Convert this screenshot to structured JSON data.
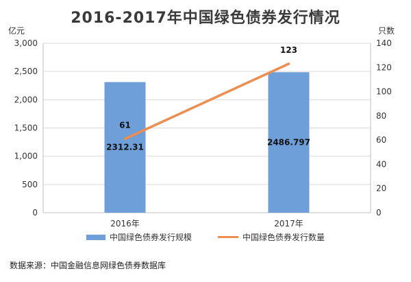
{
  "title": "2016-2017年中国绿色债券发行情况",
  "source": "数据来源：中国金融信息网绿色债券数据库",
  "colors": {
    "bar": "#6f9fd8",
    "line": "#ed8d4f",
    "grid": "#d9d9d9",
    "axis": "#bfbfbf"
  },
  "chart_data": {
    "type": "bar",
    "categories": [
      "2016年",
      "2017年"
    ],
    "y_left": {
      "unit": "亿元",
      "ylim": [
        0,
        3000
      ],
      "ticks": [
        "0",
        "500",
        "1,000",
        "1,500",
        "2,000",
        "2,500",
        "3,000"
      ]
    },
    "y_right": {
      "unit": "只数",
      "ylim": [
        0,
        140
      ],
      "ticks": [
        "0",
        "20",
        "40",
        "60",
        "80",
        "100",
        "120",
        "140"
      ]
    },
    "series": [
      {
        "name": "中国绿色债券发行规模",
        "type": "bar",
        "axis": "left",
        "values": [
          2312.31,
          2486.797
        ],
        "labels": [
          "2312.31",
          "2486.797"
        ]
      },
      {
        "name": "中国绿色债券发行数量",
        "type": "line",
        "axis": "right",
        "values": [
          61,
          123
        ],
        "labels": [
          "61",
          "123"
        ]
      }
    ],
    "grid": true,
    "legend": "bottom"
  }
}
